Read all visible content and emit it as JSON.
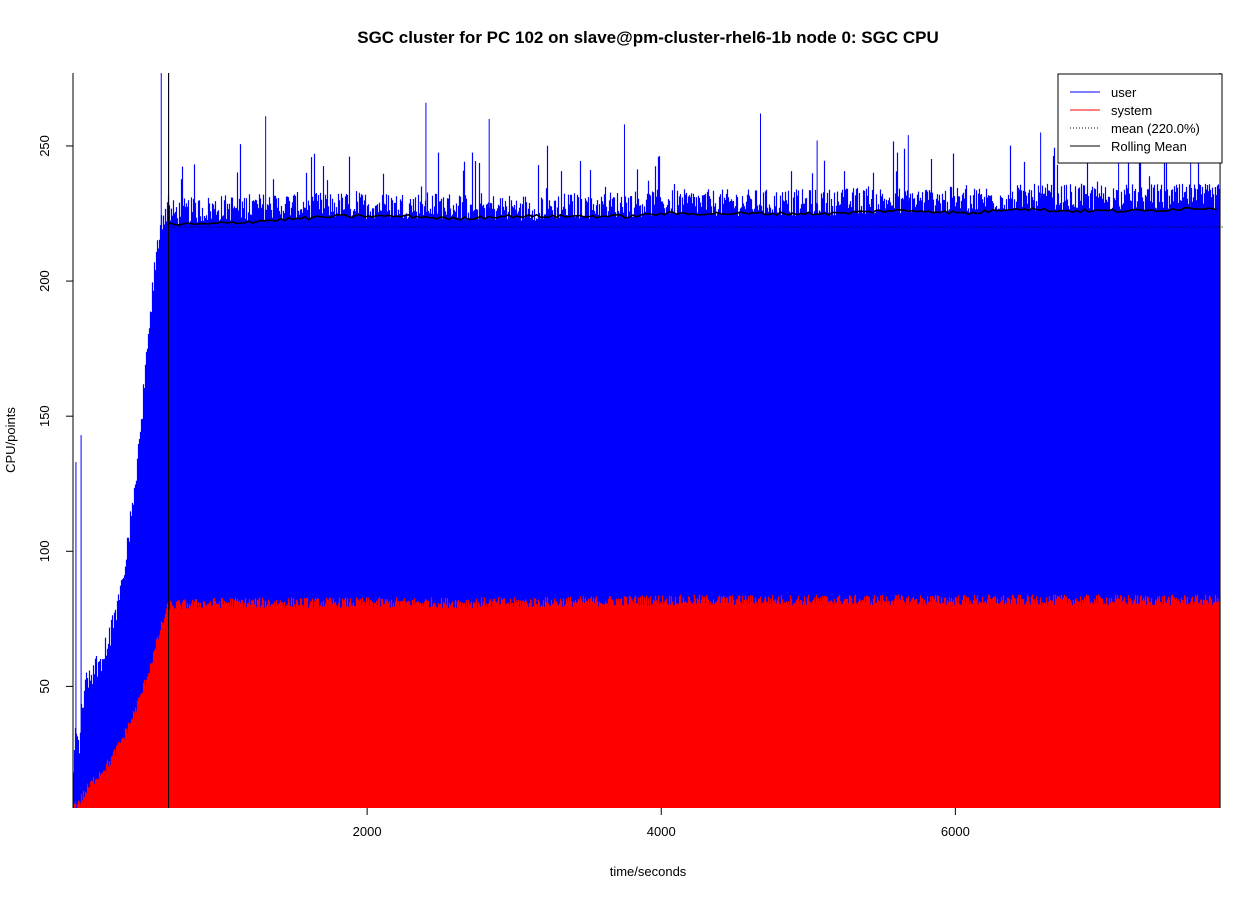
{
  "chart_data": {
    "type": "area",
    "title": "SGC cluster for PC 102 on slave@pm-cluster-rhel6-1b node 0: SGC CPU",
    "xlabel": "time/seconds",
    "ylabel": "CPU/points",
    "xlim": [
      0,
      7820
    ],
    "ylim": [
      5,
      277
    ],
    "x_ticks": [
      2000,
      4000,
      6000
    ],
    "x_tick_labels": [
      "2000",
      "4000",
      "6000"
    ],
    "y_ticks": [
      50,
      100,
      150,
      200,
      250
    ],
    "y_tick_labels": [
      "50",
      "100",
      "150",
      "200",
      "250"
    ],
    "grid": false,
    "legend_position": "top-right",
    "mean_value": 220,
    "marker_lines_x": [
      650,
      7800
    ],
    "series": [
      {
        "name": "user",
        "color": "#0000ff",
        "style": "spikes",
        "x": [
          0,
          20,
          40,
          60,
          80,
          100,
          150,
          200,
          250,
          300,
          350,
          400,
          450,
          500,
          550,
          600,
          650,
          800,
          1000,
          1500,
          2000,
          2500,
          3000,
          3500,
          4000,
          4500,
          5000,
          5500,
          6000,
          6500,
          7000,
          7500,
          7800
        ],
        "values": [
          12,
          35,
          25,
          40,
          48,
          52,
          56,
          60,
          68,
          78,
          95,
          112,
          140,
          168,
          200,
          222,
          226,
          227,
          228,
          229,
          229,
          229,
          228,
          229,
          230,
          230,
          230,
          231,
          231,
          232,
          232,
          232,
          232
        ],
        "spikes": [
          [
            20,
            133
          ],
          [
            55,
            143
          ],
          [
            600,
            278
          ],
          [
            650,
            278
          ],
          [
            1310,
            261
          ],
          [
            2400,
            266
          ],
          [
            2830,
            260
          ],
          [
            3750,
            258
          ],
          [
            4675,
            262
          ],
          [
            5060,
            252
          ],
          [
            5680,
            254
          ],
          [
            6580,
            255
          ],
          [
            7110,
            250
          ],
          [
            7600,
            249
          ]
        ]
      },
      {
        "name": "system",
        "color": "#ff0000",
        "style": "spikes",
        "x": [
          0,
          50,
          100,
          150,
          200,
          250,
          300,
          350,
          400,
          450,
          500,
          550,
          600,
          650,
          1000,
          2000,
          3000,
          4000,
          5000,
          6000,
          7000,
          7800
        ],
        "values": [
          5,
          8,
          12,
          16,
          19,
          22,
          27,
          32,
          38,
          45,
          53,
          62,
          72,
          80,
          81,
          81,
          81,
          82,
          82,
          82,
          82,
          82
        ]
      },
      {
        "name": "mean (220.0%)",
        "color": "#000000",
        "style": "dotted",
        "y": 220
      },
      {
        "name": "Rolling Mean",
        "color": "#000000",
        "style": "line",
        "x": [
          650,
          900,
          1200,
          1500,
          1800,
          2000,
          2300,
          2600,
          2900,
          3200,
          3500,
          3800,
          4000,
          4300,
          4600,
          4900,
          5200,
          5500,
          5800,
          6100,
          6400,
          6700,
          7000,
          7300,
          7600,
          7800
        ],
        "values": [
          221,
          221,
          222,
          223,
          224,
          224,
          224,
          223,
          224,
          224,
          224,
          224,
          225,
          225,
          225,
          225,
          225,
          226,
          226,
          225,
          227,
          226,
          226,
          226,
          227,
          227
        ]
      }
    ]
  }
}
